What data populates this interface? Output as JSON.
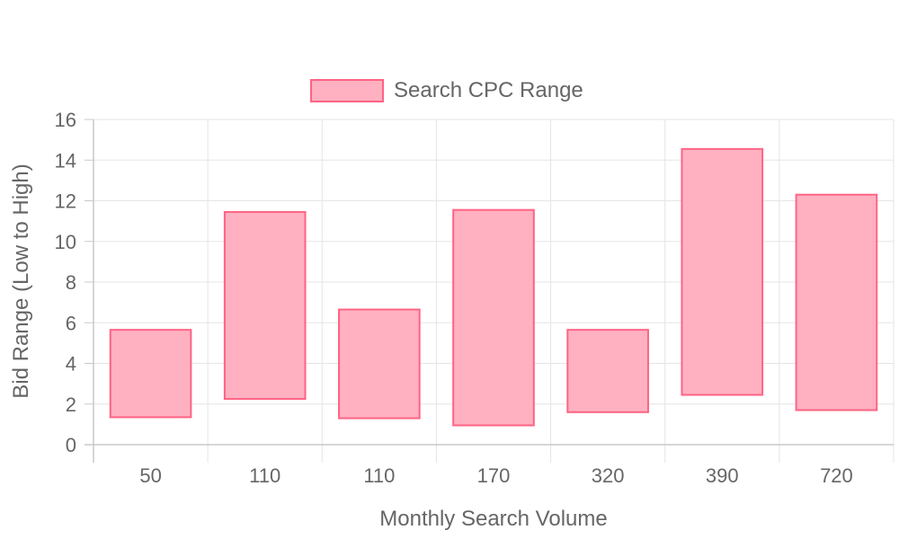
{
  "chart_data": {
    "type": "bar",
    "subtype": "floating-range",
    "categories": [
      "50",
      "110",
      "110",
      "170",
      "320",
      "390",
      "720"
    ],
    "series": [
      {
        "name": "Search CPC Range",
        "ranges": [
          [
            1.35,
            5.65
          ],
          [
            2.25,
            11.45
          ],
          [
            1.3,
            6.65
          ],
          [
            0.95,
            11.55
          ],
          [
            1.6,
            5.65
          ],
          [
            2.45,
            14.55
          ],
          [
            1.7,
            12.3
          ]
        ]
      }
    ],
    "xlabel": "Monthly Search Volume",
    "ylabel": "Bid Range (Low to High)",
    "ylim": [
      0,
      16
    ],
    "yticks": [
      0,
      2,
      4,
      6,
      8,
      10,
      12,
      14,
      16
    ],
    "grid": true,
    "legend": "top-center",
    "colors": {
      "bar_fill": "#ffb1c1",
      "bar_border": "#ff6384",
      "grid": "#e5e5e5",
      "axis": "#c8c8c8",
      "text": "#666666"
    }
  }
}
